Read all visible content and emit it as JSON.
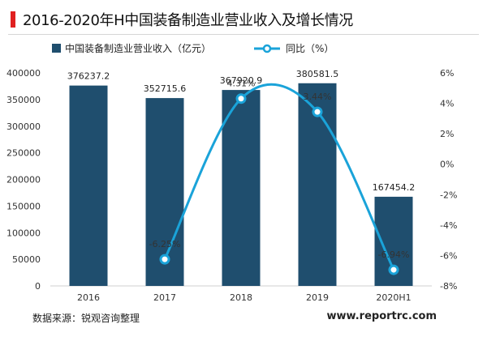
{
  "title": "2016-2020年H中国装备制造业营业收入及增长情况",
  "source": "数据来源：锐观咨询整理",
  "website": "www.reportrc.com",
  "colors": {
    "bar": "#1f4e6e",
    "line": "#1aa3d9",
    "accent": "#e02020"
  },
  "chart_data": {
    "type": "bar",
    "categories": [
      "2016",
      "2017",
      "2018",
      "2019",
      "2020H1"
    ],
    "series": [
      {
        "name": "中国装备制造业营业收入（亿元）",
        "type": "bar",
        "axis": "left",
        "values": [
          376237.2,
          352715.6,
          367920.9,
          380581.5,
          167454.2
        ],
        "labels": [
          "376237.2",
          "352715.6",
          "367920.9",
          "380581.5",
          "167454.2"
        ]
      },
      {
        "name": "同比（%）",
        "type": "line",
        "axis": "right",
        "smooth": true,
        "values": [
          null,
          -6.25,
          4.31,
          3.44,
          -6.94
        ],
        "labels": [
          "",
          "-6.25%",
          "4.31%",
          "3.44%",
          "-6.94%"
        ]
      }
    ],
    "y_left": {
      "ylim": [
        0,
        400000
      ],
      "ticks": [
        "0",
        "50000",
        "100000",
        "150000",
        "200000",
        "250000",
        "300000",
        "350000",
        "400000"
      ]
    },
    "y_right": {
      "ylim": [
        -8,
        6
      ],
      "ticks": [
        "-8%",
        "-6%",
        "-4%",
        "-2%",
        "0%",
        "2%",
        "4%",
        "6%"
      ]
    },
    "legend_position": "top-left"
  }
}
